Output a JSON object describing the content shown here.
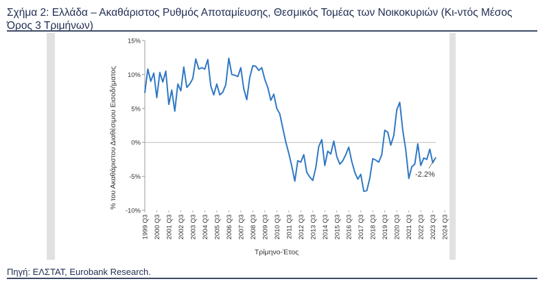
{
  "header": {
    "title": "Σχήμα 2: Ελλάδα – Ακαθάριστος Ρυθμός Αποταμίευσης, Θεσμικός Τομέας των Νοικοκυριών (Κι-ντός Μέσος Όρος 3 Τριμήνων)"
  },
  "footer": {
    "source": "Πηγή: ΕΛΣΤΑΤ, Eurobank Research."
  },
  "colors": {
    "line": "#2f78c4",
    "zero_line": "#bbbbbb",
    "axis": "#999999",
    "panel": "#e1e1e1"
  },
  "chart_data": {
    "type": "line",
    "title": "",
    "xlabel": "Τρίμηνο-Έτος",
    "ylabel": "% του Ακαθάριστου Διαθέσιμου Εισοδήματος",
    "ylim": [
      -10,
      15
    ],
    "y_ticks": [
      "-10%",
      "-5%",
      "0%",
      "5%",
      "10%",
      "15%"
    ],
    "y_tick_values": [
      -10,
      -5,
      0,
      5,
      10,
      15
    ],
    "x_tick_labels": [
      "1999 Q3",
      "2000 Q3",
      "2001 Q3",
      "2002 Q3",
      "2003 Q3",
      "2004 Q3",
      "2005 Q3",
      "2006 Q3",
      "2007 Q3",
      "2008 Q3",
      "2009 Q3",
      "2010 Q3",
      "2011 Q3",
      "2012 Q3",
      "2013 Q3",
      "2014 Q3",
      "2015 Q3",
      "2016 Q3",
      "2017 Q3",
      "2018 Q3",
      "2019 Q3",
      "2020 Q3",
      "2021 Q3",
      "2022 Q3",
      "2023 Q3",
      "2024 Q3"
    ],
    "grid": false,
    "annotations": [
      {
        "text": "-2.2%",
        "x": "2024 Q3",
        "y": -2.2
      }
    ],
    "series": [
      {
        "x_start": "1999 Q3",
        "frequency": "quarterly",
        "values": [
          7.3,
          10.8,
          9.0,
          10.2,
          6.6,
          10.3,
          8.9,
          10.5,
          5.6,
          7.7,
          4.6,
          8.6,
          7.6,
          11.1,
          8.1,
          8.6,
          9.4,
          12.3,
          10.8,
          11.0,
          10.8,
          12.2,
          8.3,
          7.0,
          8.6,
          7.0,
          7.4,
          8.5,
          12.4,
          10.0,
          9.9,
          9.7,
          11.0,
          7.9,
          6.3,
          9.6,
          11.3,
          11.2,
          10.6,
          11.0,
          9.3,
          8.1,
          6.2,
          7.1,
          5.0,
          4.2,
          2.1,
          0.1,
          -1.6,
          -3.5,
          -5.7,
          -2.7,
          -2.9,
          -1.8,
          -4.4,
          -5.1,
          -5.6,
          -3.7,
          -0.6,
          0.4,
          -3.4,
          -1.3,
          -1.7,
          0.2,
          -2.1,
          -3.2,
          -2.7,
          -1.8,
          -0.7,
          -2.8,
          -4.4,
          -5.4,
          -4.7,
          -7.2,
          -7.1,
          -5.3,
          -2.4,
          -2.6,
          -2.9,
          -1.8,
          1.8,
          1.5,
          -0.4,
          1.0,
          4.8,
          5.9,
          1.8,
          -1.1,
          -5.3,
          -3.6,
          -3.2,
          -0.2,
          -3.4,
          -2.3,
          -2.5,
          -1.0,
          -3.0,
          -2.2
        ]
      }
    ]
  }
}
